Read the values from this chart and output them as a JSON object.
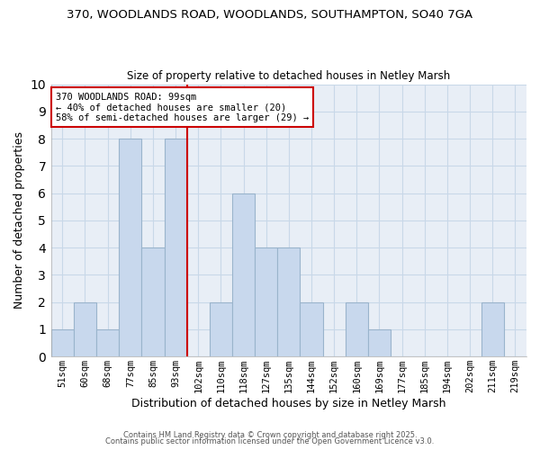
{
  "title": "370, WOODLANDS ROAD, WOODLANDS, SOUTHAMPTON, SO40 7GA",
  "subtitle": "Size of property relative to detached houses in Netley Marsh",
  "xlabel": "Distribution of detached houses by size in Netley Marsh",
  "ylabel": "Number of detached properties",
  "bin_labels": [
    "51sqm",
    "60sqm",
    "68sqm",
    "77sqm",
    "85sqm",
    "93sqm",
    "102sqm",
    "110sqm",
    "118sqm",
    "127sqm",
    "135sqm",
    "144sqm",
    "152sqm",
    "160sqm",
    "169sqm",
    "177sqm",
    "185sqm",
    "194sqm",
    "202sqm",
    "211sqm",
    "219sqm"
  ],
  "bar_values": [
    1,
    2,
    1,
    8,
    4,
    8,
    0,
    2,
    6,
    4,
    4,
    2,
    0,
    2,
    1,
    0,
    0,
    0,
    0,
    2,
    0
  ],
  "bar_color": "#c8d8ed",
  "bar_edge_color": "#9ab4cc",
  "vline_color": "#cc0000",
  "annotation_text": "370 WOODLANDS ROAD: 99sqm\n← 40% of detached houses are smaller (20)\n58% of semi-detached houses are larger (29) →",
  "annotation_box_facecolor": "#ffffff",
  "annotation_box_edgecolor": "#cc0000",
  "ylim": [
    0,
    10
  ],
  "yticks": [
    0,
    1,
    2,
    3,
    4,
    5,
    6,
    7,
    8,
    9,
    10
  ],
  "grid_color": "#c8d8e8",
  "plot_bg_color": "#e8eef6",
  "fig_bg_color": "#ffffff",
  "footer1": "Contains HM Land Registry data © Crown copyright and database right 2025.",
  "footer2": "Contains public sector information licensed under the Open Government Licence v3.0.",
  "vline_bin_index": 6
}
